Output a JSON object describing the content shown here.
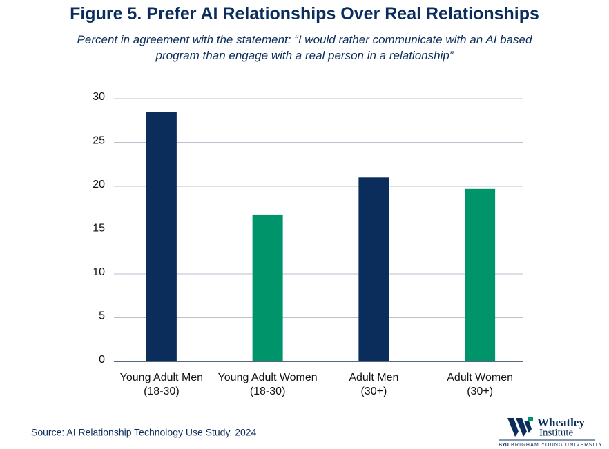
{
  "chart_data": {
    "type": "bar",
    "title": "Figure 5. Prefer AI Relationships Over Real Relationships",
    "subtitle": "Percent in agreement with the statement: “I would rather communicate with an AI based program than engage with a real person in a relationship”",
    "categories": [
      [
        "Young Adult Men",
        "(18-30)"
      ],
      [
        "Young Adult Women",
        "(18-30)"
      ],
      [
        "Adult Men",
        "(30+)"
      ],
      [
        "Adult Women",
        "(30+)"
      ]
    ],
    "values": [
      28.5,
      16.7,
      21.0,
      19.7
    ],
    "colors": [
      "#0b2d5b",
      "#00946a",
      "#0b2d5b",
      "#00946a"
    ],
    "ylim": [
      0,
      30
    ],
    "yticks": [
      0,
      5,
      10,
      15,
      20,
      25,
      30
    ],
    "grid": true
  },
  "source": "Source: AI Relationship Technology Use Study, 2024",
  "logo": {
    "name": "Wheatley",
    "subname": "Institute",
    "byu": "BYU",
    "university": "BRIGHAM YOUNG UNIVERSITY"
  }
}
